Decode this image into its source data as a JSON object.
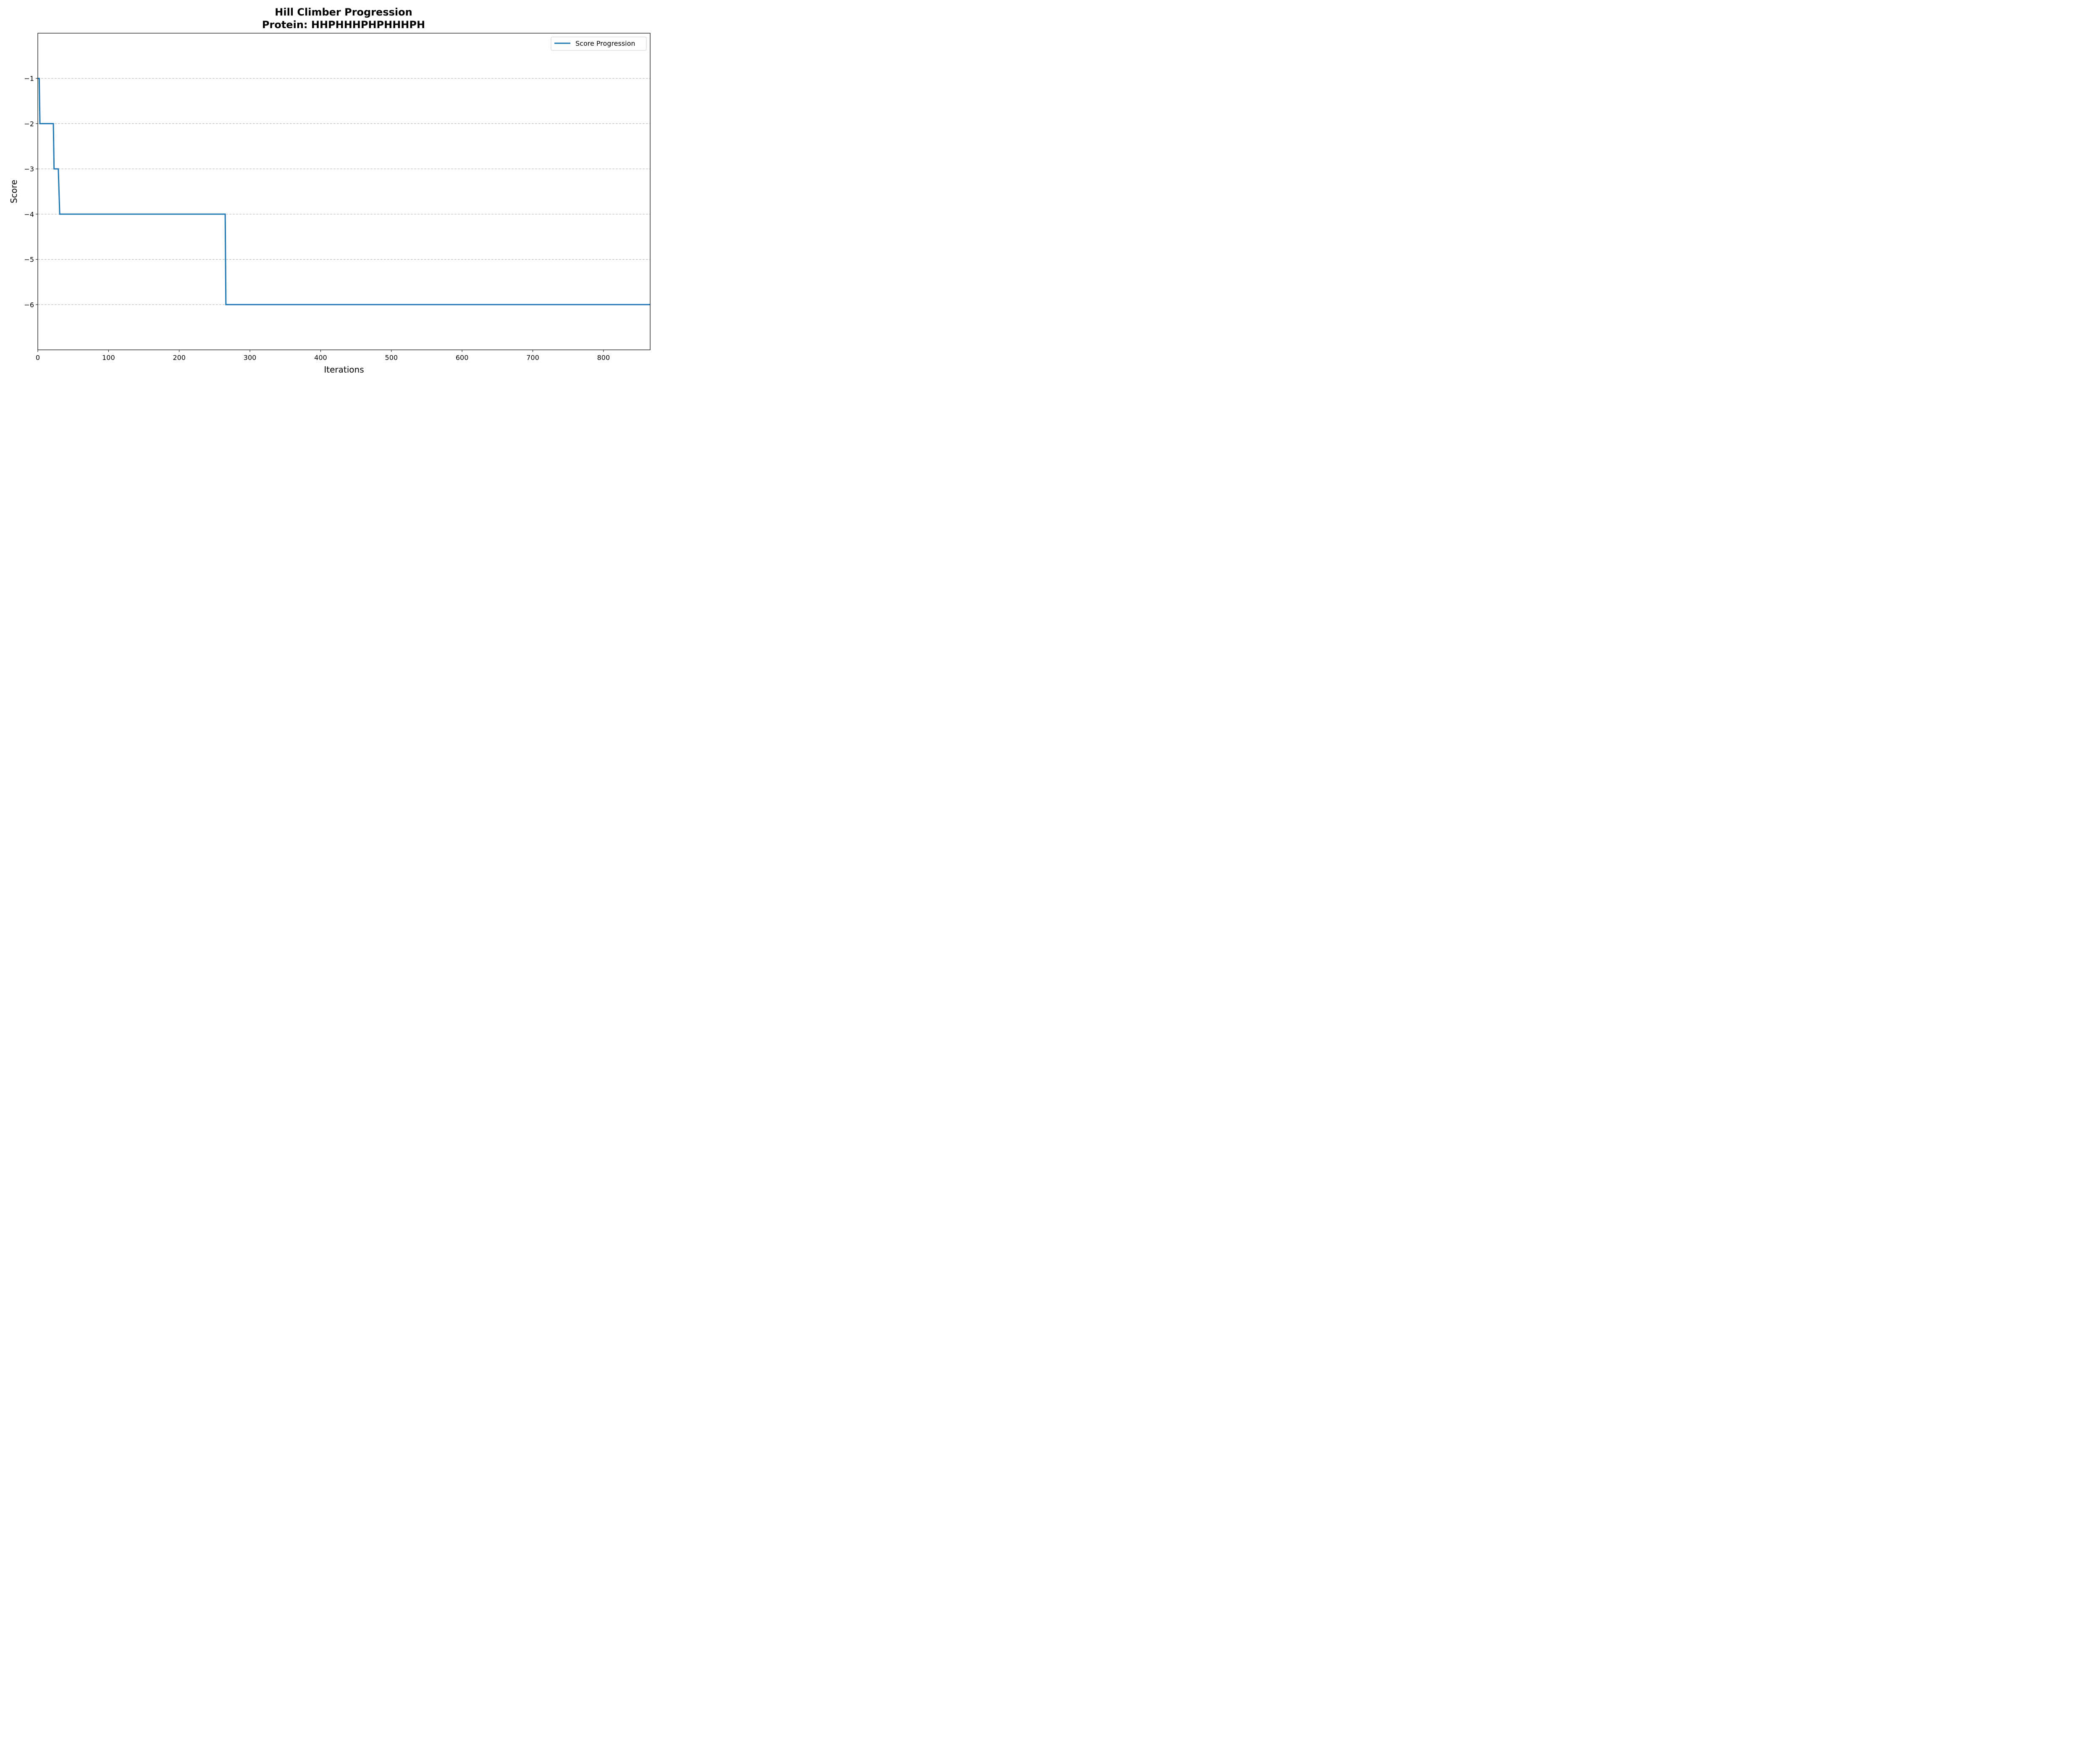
{
  "chart_data": {
    "type": "line",
    "title": "Hill Climber Progression",
    "subtitle": "Protein: HHPHHHPHPHHHPH",
    "xlabel": "Iterations",
    "ylabel": "Score",
    "xlim": [
      0,
      866
    ],
    "ylim": [
      -7,
      0
    ],
    "x_ticks": [
      0,
      100,
      200,
      300,
      400,
      500,
      600,
      700,
      800
    ],
    "y_ticks": [
      -1,
      -2,
      -3,
      -4,
      -5,
      -6
    ],
    "y_tick_labels": [
      "−1",
      "−2",
      "−3",
      "−4",
      "−5",
      "−6"
    ],
    "grid": "y-dashed",
    "legend_position": "top-right",
    "series": [
      {
        "name": "Score Progression",
        "color": "#1f77b4",
        "step_points": [
          [
            0,
            -1
          ],
          [
            2,
            -1
          ],
          [
            3,
            -2
          ],
          [
            22,
            -2
          ],
          [
            23,
            -3
          ],
          [
            29,
            -3
          ],
          [
            31,
            -4
          ],
          [
            265,
            -4
          ],
          [
            266,
            -6
          ],
          [
            866,
            -6
          ]
        ]
      }
    ]
  }
}
